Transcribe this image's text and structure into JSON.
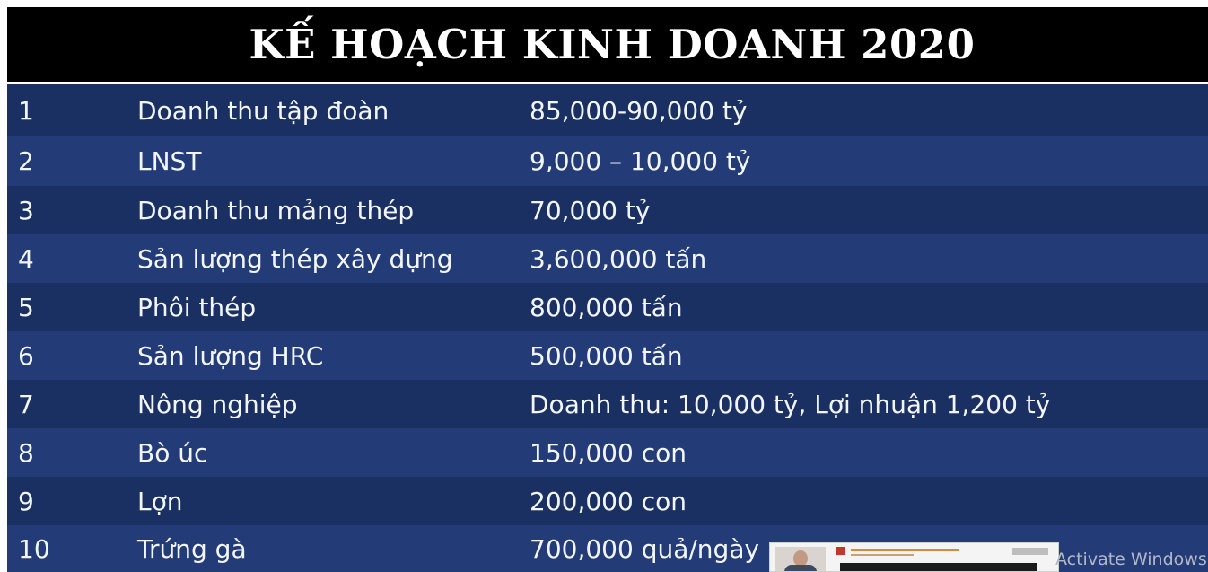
{
  "title": "KẾ HOẠCH KINH DOANH 2020",
  "rows": [
    {
      "num": "1",
      "item": "Doanh thu tập đoàn",
      "value": "85,000-90,000 tỷ"
    },
    {
      "num": "2",
      "item": "LNST",
      "value": "9,000 – 10,000 tỷ"
    },
    {
      "num": "3",
      "item": "Doanh thu mảng thép",
      "value": "70,000 tỷ"
    },
    {
      "num": "4",
      "item": "Sản lượng thép xây dựng",
      "value": "3,600,000 tấn"
    },
    {
      "num": "5",
      "item": "Phôi thép",
      "value": "800,000 tấn"
    },
    {
      "num": "6",
      "item": "Sản lượng HRC",
      "value": "500,000 tấn"
    },
    {
      "num": "7",
      "item": "Nông nghiệp",
      "value": "Doanh thu: 10,000 tỷ, Lợi nhuận 1,200 tỷ"
    },
    {
      "num": "8",
      "item": "Bò úc",
      "value": "150,000 con"
    },
    {
      "num": "9",
      "item": "Lợn",
      "value": "200,000 con"
    },
    {
      "num": "10",
      "item": "Trứng gà",
      "value": "700,000 quả/ngày"
    }
  ],
  "watermark": "Activate Windows",
  "colors": {
    "title_background": "#000000",
    "row_dark": "#1b3062",
    "row_light": "#233c78",
    "text": "#f2f5fb"
  }
}
